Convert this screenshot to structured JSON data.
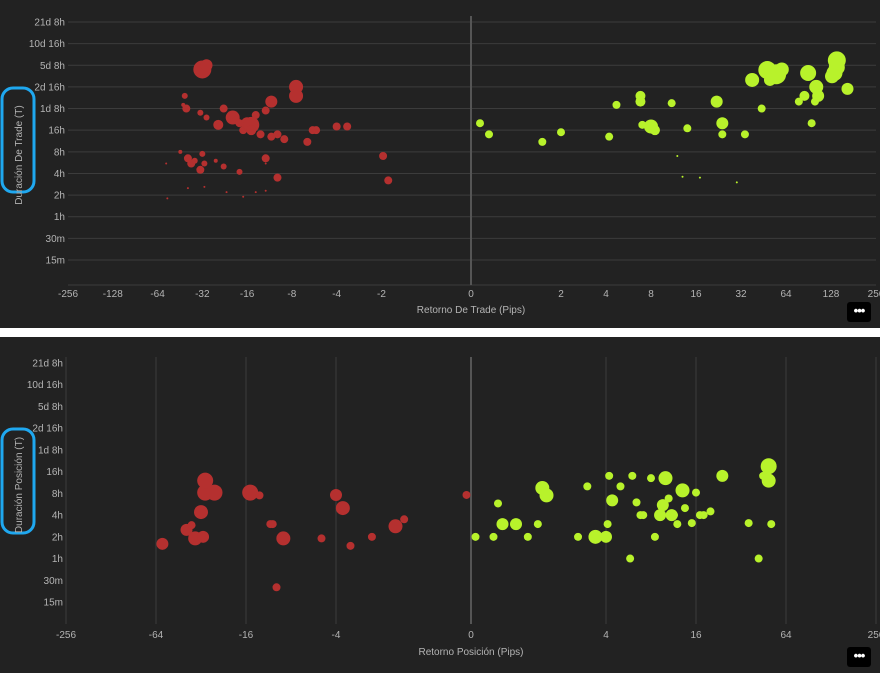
{
  "colors": {
    "loss": "#b5302f",
    "gain": "#b8f22b",
    "grid": "#3c3c3c",
    "zero_line": "#555555",
    "highlight": "#1fa8f0"
  },
  "ui": {
    "menu_icon": "ellipsis-icon",
    "more_label": "•••"
  },
  "chart_data": [
    {
      "type": "scatter",
      "xscale": "log2-symmetric",
      "yscale": "log",
      "xlabel": "Retorno De Trade (Pips)",
      "ylabel": "Duración De Trade (T)",
      "x_ticks": [
        "-256",
        "-128",
        "-64",
        "-32",
        "-16",
        "-8",
        "-4",
        "-2",
        "0",
        "2",
        "4",
        "8",
        "16",
        "32",
        "64",
        "128",
        "256"
      ],
      "y_ticks": [
        "21d 8h",
        "10d 16h",
        "5d 8h",
        "2d 16h",
        "1d 8h",
        "16h",
        "8h",
        "4h",
        "2h",
        "1h",
        "30m",
        "15m"
      ],
      "grid": {
        "horizontal": true,
        "vertical": false
      },
      "points": [
        [
          -32,
          112,
          9
        ],
        [
          -30,
          128,
          6
        ],
        [
          -43,
          36,
          2
        ],
        [
          -42,
          48,
          3
        ],
        [
          -41,
          32,
          4
        ],
        [
          -33,
          28,
          3
        ],
        [
          -30,
          24,
          3
        ],
        [
          -25,
          19,
          5
        ],
        [
          -23,
          32,
          4
        ],
        [
          -20,
          24,
          7
        ],
        [
          -19,
          22,
          4
        ],
        [
          -18,
          20,
          4
        ],
        [
          -17,
          16,
          4
        ],
        [
          -16,
          20,
          6
        ],
        [
          -15,
          19,
          8
        ],
        [
          -15,
          16,
          5
        ],
        [
          -14,
          26,
          4
        ],
        [
          -13,
          14,
          4
        ],
        [
          -12,
          30,
          4
        ],
        [
          -11,
          40,
          6
        ],
        [
          -11,
          13,
          4
        ],
        [
          -10,
          14,
          4
        ],
        [
          -9,
          12,
          4
        ],
        [
          -7.5,
          64,
          7
        ],
        [
          -7.5,
          48,
          7
        ],
        [
          -6.3,
          11,
          4
        ],
        [
          -5.8,
          16,
          4
        ],
        [
          -5.5,
          16,
          4
        ],
        [
          -4,
          18,
          4
        ],
        [
          -3.4,
          18,
          4
        ],
        [
          -1.95,
          7,
          4
        ],
        [
          -1.8,
          3.2,
          4
        ],
        [
          -45,
          8,
          2
        ],
        [
          -40,
          6.5,
          4
        ],
        [
          -38,
          5.5,
          4
        ],
        [
          -36,
          6,
          3
        ],
        [
          -33,
          4.5,
          4
        ],
        [
          -32,
          7.5,
          3
        ],
        [
          -31,
          5.5,
          3
        ],
        [
          -26,
          6,
          2
        ],
        [
          -23,
          5,
          3
        ],
        [
          -18,
          4.2,
          3
        ],
        [
          -12,
          6.5,
          4
        ],
        [
          -10,
          3.5,
          4
        ],
        [
          -31,
          2.6,
          1
        ],
        [
          -22,
          2.2,
          1
        ],
        [
          -40,
          2.5,
          1
        ],
        [
          -56,
          5.5,
          1
        ],
        [
          -55,
          1.8,
          1
        ],
        [
          -14,
          2.2,
          1
        ],
        [
          -12,
          2.3,
          1
        ],
        [
          -17,
          1.9,
          1
        ],
        [
          -12,
          5.5,
          1
        ],
        [
          0.2,
          20,
          4
        ],
        [
          0.4,
          14,
          4
        ],
        [
          1.5,
          11,
          4
        ],
        [
          2,
          15,
          4
        ],
        [
          4.2,
          13,
          4
        ],
        [
          4.7,
          36,
          4
        ],
        [
          6.8,
          48,
          5
        ],
        [
          6.8,
          40,
          5
        ],
        [
          7,
          19,
          4
        ],
        [
          8,
          18,
          7
        ],
        [
          8.5,
          16,
          5
        ],
        [
          11,
          38,
          4
        ],
        [
          14,
          17,
          4
        ],
        [
          22,
          40,
          6
        ],
        [
          24,
          20,
          6
        ],
        [
          24,
          14,
          4
        ],
        [
          34,
          14,
          4
        ],
        [
          38,
          80,
          7
        ],
        [
          44,
          32,
          4
        ],
        [
          48,
          110,
          9
        ],
        [
          50,
          80,
          6
        ],
        [
          55,
          96,
          10
        ],
        [
          60,
          112,
          7
        ],
        [
          78,
          40,
          4
        ],
        [
          85,
          48,
          5
        ],
        [
          90,
          100,
          8
        ],
        [
          95,
          20,
          4
        ],
        [
          100,
          40,
          4
        ],
        [
          102,
          64,
          7
        ],
        [
          105,
          48,
          6
        ],
        [
          130,
          90,
          7
        ],
        [
          135,
          100,
          8
        ],
        [
          140,
          120,
          8
        ],
        [
          140,
          150,
          9
        ],
        [
          165,
          60,
          6
        ],
        [
          12,
          7,
          1
        ],
        [
          13,
          3.6,
          1
        ],
        [
          17,
          3.5,
          1
        ],
        [
          30,
          3,
          1
        ]
      ]
    },
    {
      "type": "scatter",
      "xscale": "log2-symmetric",
      "yscale": "log",
      "xlabel": "Retorno Posición (Pips)",
      "ylabel": "Duración Posición (T)",
      "x_ticks": [
        "-256",
        "-64",
        "-16",
        "-4",
        "0",
        "4",
        "16",
        "64",
        "256"
      ],
      "y_ticks": [
        "21d 8h",
        "10d 16h",
        "5d 8h",
        "2d 16h",
        "1d 8h",
        "16h",
        "8h",
        "4h",
        "2h",
        "1h",
        "30m",
        "15m"
      ],
      "grid": {
        "horizontal": false,
        "vertical": true
      },
      "points": [
        [
          -58,
          1.6,
          6
        ],
        [
          -40,
          2.5,
          6
        ],
        [
          -37,
          2.9,
          4
        ],
        [
          -35,
          1.9,
          7
        ],
        [
          -32,
          4.4,
          7
        ],
        [
          -31,
          2,
          6
        ],
        [
          -30,
          8.2,
          8
        ],
        [
          -30,
          12,
          8
        ],
        [
          -26,
          8.2,
          8
        ],
        [
          -15,
          8.2,
          8
        ],
        [
          -13,
          7.5,
          4
        ],
        [
          -11,
          3,
          4
        ],
        [
          -10.6,
          3,
          4
        ],
        [
          -10,
          0.4,
          4
        ],
        [
          -9,
          1.9,
          7
        ],
        [
          -5,
          1.9,
          4
        ],
        [
          -4,
          7.6,
          6
        ],
        [
          -3.6,
          5,
          7
        ],
        [
          -3.2,
          1.5,
          4
        ],
        [
          -2.3,
          2,
          4
        ],
        [
          -1.6,
          2.8,
          7
        ],
        [
          -1.4,
          3.5,
          4
        ],
        [
          -0.1,
          7.6,
          4
        ],
        [
          0.1,
          2,
          4
        ],
        [
          0.5,
          2,
          4
        ],
        [
          0.6,
          5.8,
          4
        ],
        [
          0.7,
          3,
          6
        ],
        [
          1,
          3,
          6
        ],
        [
          1.2,
          2,
          4
        ],
        [
          1.4,
          3,
          4
        ],
        [
          1.5,
          9.5,
          7
        ],
        [
          1.6,
          7.5,
          7
        ],
        [
          2.6,
          2,
          4
        ],
        [
          3,
          10,
          4
        ],
        [
          3.4,
          2,
          7
        ],
        [
          4,
          2,
          6
        ],
        [
          4.1,
          3,
          4
        ],
        [
          4.2,
          14,
          4
        ],
        [
          4.4,
          6.4,
          6
        ],
        [
          5,
          10,
          4
        ],
        [
          5.8,
          1,
          4
        ],
        [
          6,
          14,
          4
        ],
        [
          6.4,
          6,
          4
        ],
        [
          6.8,
          4,
          4
        ],
        [
          7.1,
          4,
          4
        ],
        [
          8,
          13,
          4
        ],
        [
          8.5,
          2,
          4
        ],
        [
          9.2,
          4,
          6
        ],
        [
          9.6,
          5.5,
          6
        ],
        [
          10,
          13,
          7
        ],
        [
          10.5,
          6.8,
          4
        ],
        [
          11,
          4,
          6
        ],
        [
          11.4,
          4,
          4
        ],
        [
          12,
          3,
          4
        ],
        [
          13,
          8.8,
          7
        ],
        [
          13.5,
          5,
          4
        ],
        [
          15,
          3.1,
          4
        ],
        [
          16,
          8.2,
          4
        ],
        [
          17,
          4,
          4
        ],
        [
          18,
          4,
          4
        ],
        [
          20,
          4.5,
          4
        ],
        [
          24,
          14,
          6
        ],
        [
          36,
          3.1,
          4
        ],
        [
          42,
          1,
          4
        ],
        [
          45,
          14,
          4
        ],
        [
          49,
          19,
          8
        ],
        [
          49,
          12,
          7
        ],
        [
          51,
          3,
          4
        ]
      ]
    }
  ]
}
